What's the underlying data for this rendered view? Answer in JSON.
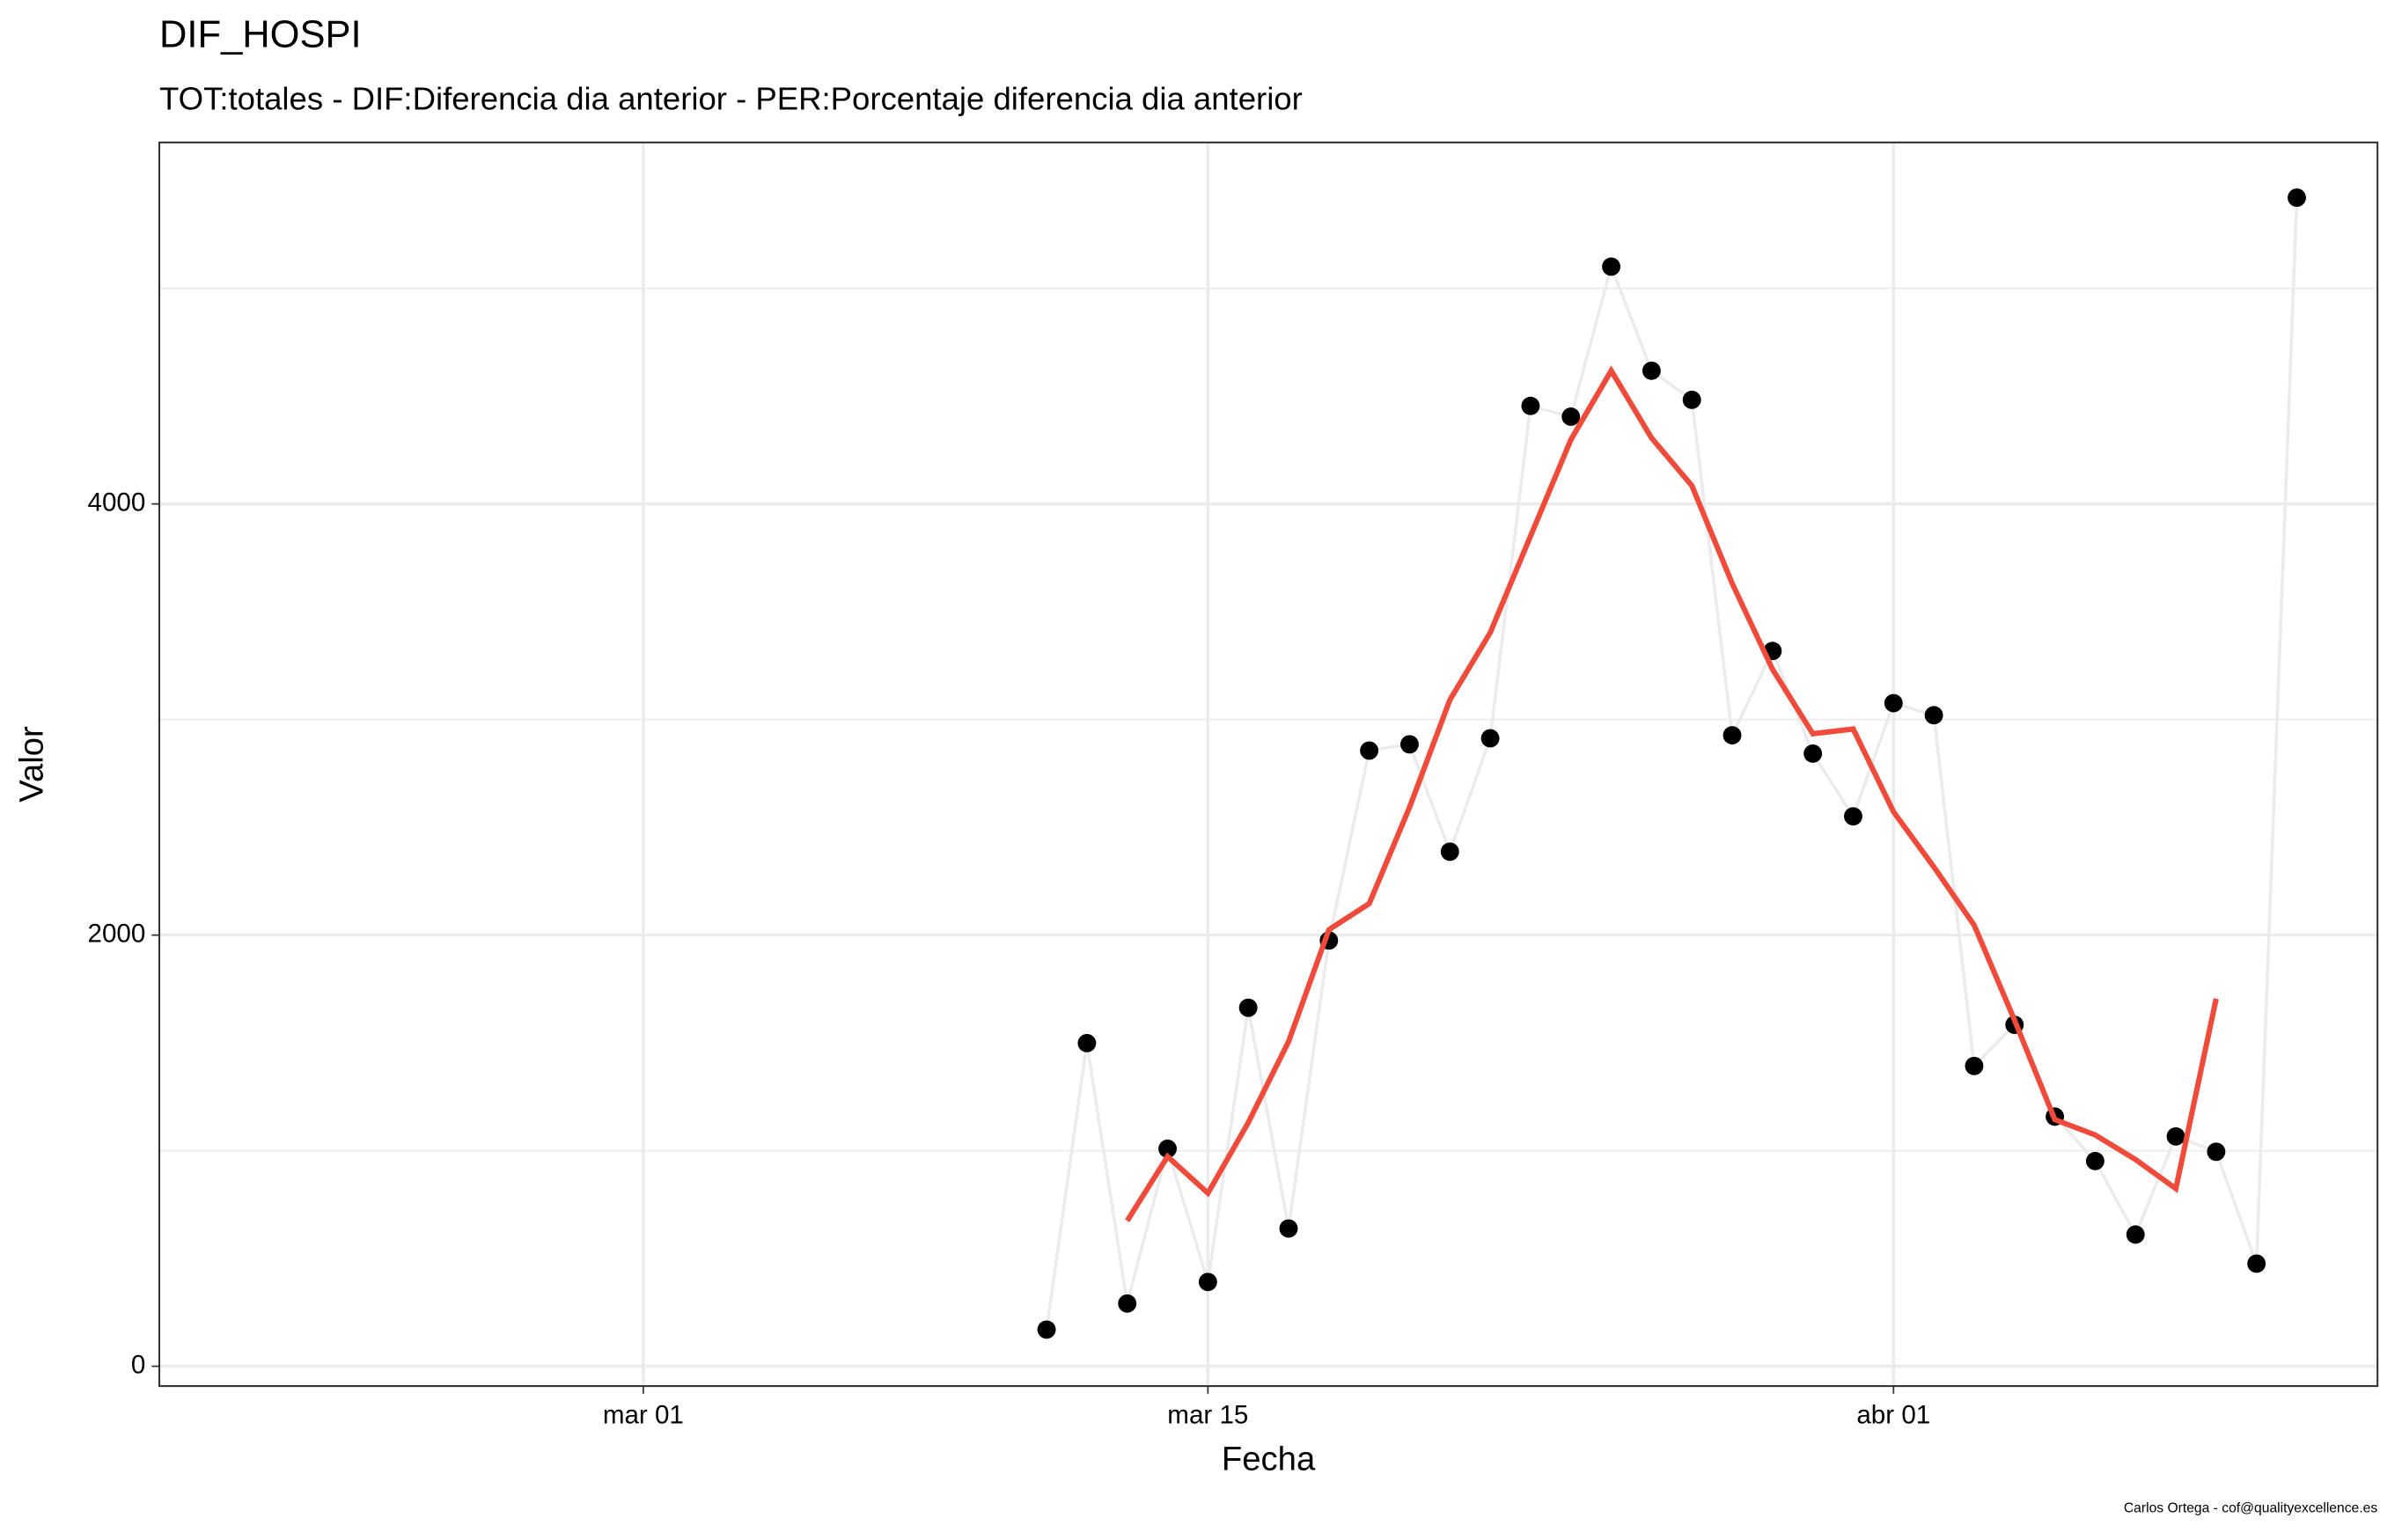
{
  "chart_data": {
    "type": "line",
    "title": "DIF_HOSPI",
    "subtitle": "TOT:totales - DIF:Diferencia dia anterior - PER:Porcentaje diferencia dia anterior",
    "x_label": "Fecha",
    "y_label": "Valor",
    "caption": "Carlos Ortega - cof@qualityexcellence.es",
    "x": [
      "03-11",
      "03-12",
      "03-13",
      "03-14",
      "03-15",
      "03-16",
      "03-17",
      "03-18",
      "03-19",
      "03-20",
      "03-21",
      "03-22",
      "03-23",
      "03-24",
      "03-25",
      "03-26",
      "03-27",
      "03-28",
      "03-29",
      "03-30",
      "03-31",
      "04-01",
      "04-02",
      "04-03",
      "04-04",
      "04-05",
      "04-06",
      "04-07",
      "04-08",
      "04-09",
      "04-10",
      "04-11"
    ],
    "series": [
      {
        "color": "#000000",
        "line_color": "#ebebeb",
        "markers": true,
        "values": [
          170,
          1499,
          291,
          1009,
          391,
          1663,
          639,
          1975,
          2856,
          2885,
          2387,
          2913,
          4455,
          4405,
          5101,
          4618,
          4483,
          2927,
          3318,
          2842,
          2551,
          3076,
          3020,
          1393,
          1584,
          1158,
          952,
          611,
          1066,
          995,
          476,
          5421
        ]
      },
      {
        "color": "#f04a3a",
        "markers": false,
        "values": [
          null,
          null,
          675,
          973,
          803,
          1130,
          1506,
          2025,
          2146,
          2593,
          3091,
          3403,
          3851,
          4298,
          4618,
          4306,
          4085,
          3631,
          3233,
          2934,
          2956,
          2572,
          2316,
          2046,
          1606,
          1144,
          1073,
          959,
          824,
          1705,
          null,
          null
        ]
      }
    ],
    "xlim": [
      "02-18",
      "04-13"
    ],
    "xticks": [
      {
        "value": "03-01",
        "label": "mar 01"
      },
      {
        "value": "03-15",
        "label": "mar 15"
      },
      {
        "value": "04-01",
        "label": "abr 01"
      }
    ],
    "ylim": [
      -92,
      5677
    ],
    "yticks": [
      0,
      2000,
      4000
    ],
    "yminorticks": [
      1000,
      3000,
      5000
    ],
    "grid": true
  }
}
